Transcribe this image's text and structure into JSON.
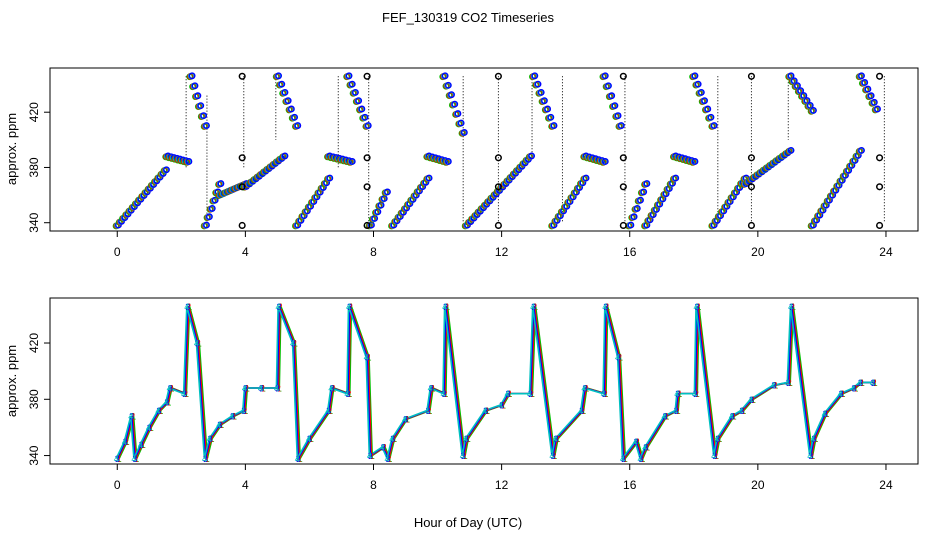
{
  "chart_data": {
    "type": "scatter",
    "title": "FEF_130319  CO2 Timeseries",
    "xlabel": "Hour of Day (UTC)",
    "panels": [
      {
        "id": "top",
        "style": "points-and-dotted-drops",
        "ylabel": "approx. ppm",
        "xlim": [
          -2.1,
          25.0
        ],
        "ylim": [
          334,
          452
        ],
        "x_ticks": [
          0,
          4,
          8,
          12,
          16,
          20,
          24
        ],
        "y_ticks": [
          340,
          380,
          420
        ],
        "y_tick_labels": [
          "340",
          "380",
          "420"
        ],
        "series_colors": [
          "#00c000",
          "#ff0000",
          "#00c0c0",
          "#0000ff"
        ],
        "ramps": [
          {
            "x": [
              0.0,
              1.5
            ],
            "y": [
              338,
              378
            ]
          },
          {
            "x": [
              1.55,
              2.2
            ],
            "y": [
              388,
              384
            ]
          },
          {
            "x": [
              2.3,
              2.75
            ],
            "y": [
              446,
              410
            ]
          },
          {
            "x": [
              2.75,
              3.2
            ],
            "y": [
              338,
              368
            ]
          },
          {
            "x": [
              3.2,
              4.0
            ],
            "y": [
              360,
              368
            ]
          },
          {
            "x": [
              4.0,
              5.2
            ],
            "y": [
              366,
              388
            ]
          },
          {
            "x": [
              5.0,
              5.6
            ],
            "y": [
              446,
              410
            ]
          },
          {
            "x": [
              5.6,
              6.6
            ],
            "y": [
              338,
              372
            ]
          },
          {
            "x": [
              6.6,
              7.3
            ],
            "y": [
              388,
              384
            ]
          },
          {
            "x": [
              7.2,
              7.8
            ],
            "y": [
              446,
              410
            ]
          },
          {
            "x": [
              7.9,
              8.4
            ],
            "y": [
              338,
              362
            ]
          },
          {
            "x": [
              8.6,
              9.7
            ],
            "y": [
              338,
              372
            ]
          },
          {
            "x": [
              9.7,
              10.3
            ],
            "y": [
              388,
              384
            ]
          },
          {
            "x": [
              10.2,
              10.8
            ],
            "y": [
              446,
              405
            ]
          },
          {
            "x": [
              10.9,
              12.9
            ],
            "y": [
              338,
              388
            ]
          },
          {
            "x": [
              13.0,
              13.6
            ],
            "y": [
              446,
              410
            ]
          },
          {
            "x": [
              13.6,
              14.6
            ],
            "y": [
              338,
              372
            ]
          },
          {
            "x": [
              14.6,
              15.2
            ],
            "y": [
              388,
              384
            ]
          },
          {
            "x": [
              15.2,
              15.7
            ],
            "y": [
              446,
              410
            ]
          },
          {
            "x": [
              16.0,
              16.5
            ],
            "y": [
              338,
              368
            ]
          },
          {
            "x": [
              16.5,
              17.4
            ],
            "y": [
              338,
              372
            ]
          },
          {
            "x": [
              17.4,
              18.0
            ],
            "y": [
              388,
              384
            ]
          },
          {
            "x": [
              18.0,
              18.6
            ],
            "y": [
              446,
              410
            ]
          },
          {
            "x": [
              18.6,
              19.6
            ],
            "y": [
              338,
              372
            ]
          },
          {
            "x": [
              19.6,
              21.0
            ],
            "y": [
              368,
              392
            ]
          },
          {
            "x": [
              21.0,
              21.7
            ],
            "y": [
              446,
              421
            ]
          },
          {
            "x": [
              21.7,
              23.2
            ],
            "y": [
              338,
              392
            ]
          },
          {
            "x": [
              23.2,
              23.7
            ],
            "y": [
              446,
              422
            ]
          }
        ],
        "drops": [
          {
            "x": 2.15,
            "y1": 446,
            "y2": 380
          },
          {
            "x": 2.8,
            "y1": 432,
            "y2": 340
          },
          {
            "x": 3.95,
            "y1": 446,
            "y2": 380
          },
          {
            "x": 4.95,
            "y1": 446,
            "y2": 400
          },
          {
            "x": 6.9,
            "y1": 446,
            "y2": 380
          },
          {
            "x": 7.85,
            "y1": 446,
            "y2": 340
          },
          {
            "x": 10.8,
            "y1": 446,
            "y2": 340
          },
          {
            "x": 11.9,
            "y1": 446,
            "y2": 340
          },
          {
            "x": 12.95,
            "y1": 446,
            "y2": 388
          },
          {
            "x": 13.9,
            "y1": 446,
            "y2": 340
          },
          {
            "x": 15.85,
            "y1": 446,
            "y2": 340
          },
          {
            "x": 18.75,
            "y1": 446,
            "y2": 338
          },
          {
            "x": 19.8,
            "y1": 446,
            "y2": 340
          },
          {
            "x": 20.95,
            "y1": 446,
            "y2": 400
          },
          {
            "x": 23.95,
            "y1": 446,
            "y2": 340
          }
        ],
        "reference_points": [
          {
            "x": 3.9,
            "y": 446
          },
          {
            "x": 3.9,
            "y": 387
          },
          {
            "x": 3.9,
            "y": 366
          },
          {
            "x": 3.9,
            "y": 338
          },
          {
            "x": 7.8,
            "y": 446
          },
          {
            "x": 7.8,
            "y": 387
          },
          {
            "x": 7.8,
            "y": 366
          },
          {
            "x": 7.8,
            "y": 338
          },
          {
            "x": 11.9,
            "y": 446
          },
          {
            "x": 11.9,
            "y": 387
          },
          {
            "x": 11.9,
            "y": 366
          },
          {
            "x": 11.9,
            "y": 338
          },
          {
            "x": 15.8,
            "y": 446
          },
          {
            "x": 15.8,
            "y": 387
          },
          {
            "x": 15.8,
            "y": 366
          },
          {
            "x": 15.8,
            "y": 338
          },
          {
            "x": 19.8,
            "y": 446
          },
          {
            "x": 19.8,
            "y": 387
          },
          {
            "x": 19.8,
            "y": 366
          },
          {
            "x": 19.8,
            "y": 338
          },
          {
            "x": 23.8,
            "y": 446
          },
          {
            "x": 23.8,
            "y": 387
          },
          {
            "x": 23.8,
            "y": 366
          },
          {
            "x": 23.8,
            "y": 338
          }
        ]
      },
      {
        "id": "bottom",
        "style": "lines-and-digit-markers",
        "ylabel": "approx. ppm",
        "xlim": [
          -2.1,
          25.0
        ],
        "ylim": [
          334,
          452
        ],
        "x_ticks": [
          0,
          4,
          8,
          12,
          16,
          20,
          24
        ],
        "y_ticks": [
          340,
          380,
          420
        ],
        "y_tick_labels": [
          "340",
          "380",
          "420"
        ],
        "series": [
          {
            "name": "1",
            "color": "#00c000",
            "offset": 0.06
          },
          {
            "name": "2",
            "color": "#ff0000",
            "offset": 0.03
          },
          {
            "name": "3",
            "color": "#0000ff",
            "offset": 0.0
          },
          {
            "name": "4",
            "color": "#00c0c0",
            "offset": -0.03
          }
        ],
        "x": [
          0.0,
          0.25,
          0.45,
          0.55,
          0.75,
          1.0,
          1.3,
          1.55,
          1.65,
          2.1,
          2.2,
          2.5,
          2.75,
          2.9,
          3.2,
          3.6,
          3.95,
          4.0,
          4.5,
          5.0,
          5.05,
          5.5,
          5.65,
          6.0,
          6.6,
          6.7,
          7.2,
          7.25,
          7.8,
          7.9,
          8.3,
          8.45,
          8.6,
          9.0,
          9.7,
          9.8,
          10.2,
          10.25,
          10.8,
          10.9,
          11.5,
          12.0,
          12.2,
          12.9,
          13.0,
          13.6,
          13.7,
          14.5,
          14.6,
          15.2,
          15.25,
          15.65,
          15.8,
          16.2,
          16.35,
          16.5,
          17.1,
          17.45,
          17.5,
          18.05,
          18.1,
          18.65,
          18.75,
          19.2,
          19.5,
          19.8,
          20.5,
          20.95,
          21.05,
          21.65,
          21.75,
          22.1,
          22.6,
          23.0,
          23.2,
          23.6
        ],
        "y": [
          338,
          350,
          368,
          338,
          348,
          360,
          372,
          378,
          388,
          384,
          446,
          420,
          338,
          352,
          362,
          368,
          372,
          388,
          388,
          388,
          446,
          420,
          338,
          352,
          372,
          388,
          384,
          446,
          410,
          340,
          346,
          338,
          352,
          366,
          372,
          388,
          384,
          446,
          340,
          352,
          372,
          376,
          384,
          384,
          446,
          340,
          352,
          372,
          388,
          384,
          446,
          410,
          338,
          350,
          338,
          346,
          368,
          372,
          384,
          384,
          446,
          340,
          352,
          368,
          372,
          380,
          390,
          392,
          446,
          340,
          352,
          370,
          384,
          388,
          392,
          392
        ]
      }
    ]
  }
}
